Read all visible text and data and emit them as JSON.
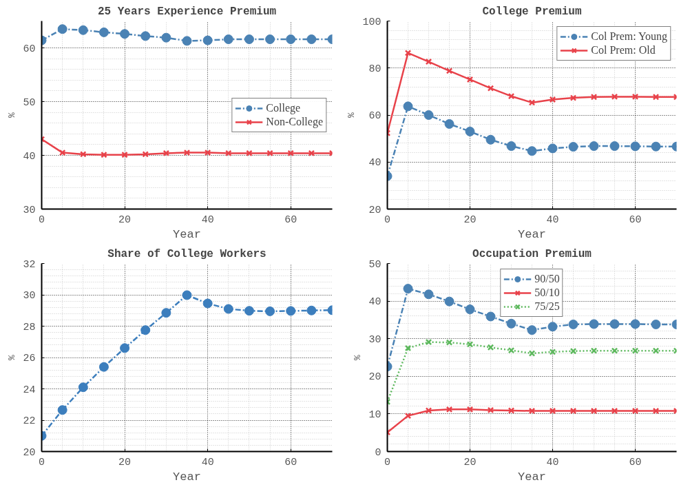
{
  "chart_data": [
    {
      "type": "line",
      "title": "25 Years Experience Premium",
      "xlabel": "Year",
      "ylabel": "%",
      "x": [
        0,
        5,
        10,
        15,
        20,
        25,
        30,
        35,
        40,
        45,
        50,
        55,
        60,
        65,
        70
      ],
      "xlim": [
        0,
        70
      ],
      "xticks": [
        0,
        20,
        40,
        60
      ],
      "ylim": [
        30,
        65
      ],
      "yticks": [
        30,
        40,
        50,
        60
      ],
      "grid": true,
      "legend": "right",
      "series": [
        {
          "name": "College",
          "color": "#4a82b4",
          "marker": "circle",
          "line_style": "dashed",
          "values": [
            61.4,
            63.5,
            63.3,
            62.9,
            62.6,
            62.2,
            61.9,
            61.3,
            61.4,
            61.6,
            61.6,
            61.6,
            61.6,
            61.6,
            61.6
          ]
        },
        {
          "name": "Non-College",
          "color": "#e8424a",
          "marker": "cross",
          "line_style": "solid",
          "values": [
            43,
            40.5,
            40.2,
            40.1,
            40.1,
            40.2,
            40.4,
            40.5,
            40.5,
            40.4,
            40.4,
            40.4,
            40.4,
            40.4,
            40.4
          ]
        }
      ]
    },
    {
      "type": "line",
      "title": "College Premium",
      "xlabel": "Year",
      "ylabel": "%",
      "x": [
        0,
        5,
        10,
        15,
        20,
        25,
        30,
        35,
        40,
        45,
        50,
        55,
        60,
        65,
        70
      ],
      "xlim": [
        0,
        70
      ],
      "xticks": [
        0,
        20,
        40,
        60
      ],
      "ylim": [
        20,
        100
      ],
      "yticks": [
        20,
        40,
        60,
        80,
        100
      ],
      "grid": true,
      "legend": "top right",
      "series": [
        {
          "name": "Col Prem: Young",
          "color": "#4a82b4",
          "marker": "circle",
          "line_style": "dashed",
          "values": [
            34,
            63.7,
            60,
            56.2,
            53,
            49.5,
            46.8,
            44.7,
            45.8,
            46.5,
            46.8,
            46.8,
            46.7,
            46.6,
            46.6
          ]
        },
        {
          "name": "Col Prem: Old",
          "color": "#e8424a",
          "marker": "cross",
          "line_style": "solid",
          "values": [
            52.3,
            86.4,
            82.7,
            78.8,
            75.1,
            71.4,
            68,
            65.3,
            66.6,
            67.3,
            67.7,
            67.8,
            67.8,
            67.7,
            67.7
          ]
        }
      ]
    },
    {
      "type": "line",
      "title": "Share of College Workers",
      "xlabel": "Year",
      "ylabel": "%",
      "x": [
        0,
        5,
        10,
        15,
        20,
        25,
        30,
        35,
        40,
        45,
        50,
        55,
        60,
        65,
        70
      ],
      "xlim": [
        0,
        70
      ],
      "xticks": [
        0,
        20,
        40,
        60
      ],
      "ylim": [
        20,
        32
      ],
      "yticks": [
        20,
        22,
        24,
        26,
        28,
        30,
        32
      ],
      "grid": true,
      "series": [
        {
          "color": "#3c7ebd",
          "marker": "circle",
          "line_style": "dashed",
          "values": [
            21,
            22.65,
            24.1,
            25.4,
            26.6,
            27.75,
            28.85,
            29.98,
            29.45,
            29.1,
            28.98,
            28.95,
            28.97,
            29.0,
            29.02
          ]
        }
      ]
    },
    {
      "type": "line",
      "title": "Occupation Premium",
      "xlabel": "Year",
      "ylabel": "%",
      "x": [
        0,
        5,
        10,
        15,
        20,
        25,
        30,
        35,
        40,
        45,
        50,
        55,
        60,
        65,
        70
      ],
      "xlim": [
        0,
        70
      ],
      "xticks": [
        0,
        20,
        40,
        60
      ],
      "ylim": [
        0,
        50
      ],
      "yticks": [
        0,
        10,
        20,
        30,
        40,
        50
      ],
      "grid": true,
      "legend": "top",
      "series": [
        {
          "name": "90/50",
          "color": "#4a82b4",
          "marker": "circle",
          "line_style": "dashed",
          "values": [
            22.6,
            43.3,
            41.8,
            39.9,
            37.8,
            35.9,
            34,
            32.3,
            33.2,
            33.8,
            33.9,
            33.9,
            33.9,
            33.8,
            33.8
          ]
        },
        {
          "name": "50/10",
          "color": "#e8424a",
          "marker": "cross",
          "line_style": "solid",
          "values": [
            5.1,
            9.5,
            10.9,
            11.2,
            11.2,
            11.0,
            10.9,
            10.8,
            10.8,
            10.8,
            10.8,
            10.8,
            10.8,
            10.8,
            10.8
          ]
        },
        {
          "name": "75/25",
          "color": "#5cb85c",
          "marker": "cross",
          "line_style": "dotted",
          "values": [
            13.2,
            27.5,
            29.1,
            29.0,
            28.5,
            27.7,
            26.9,
            26.1,
            26.5,
            26.7,
            26.8,
            26.8,
            26.8,
            26.8,
            26.8
          ]
        }
      ]
    }
  ]
}
